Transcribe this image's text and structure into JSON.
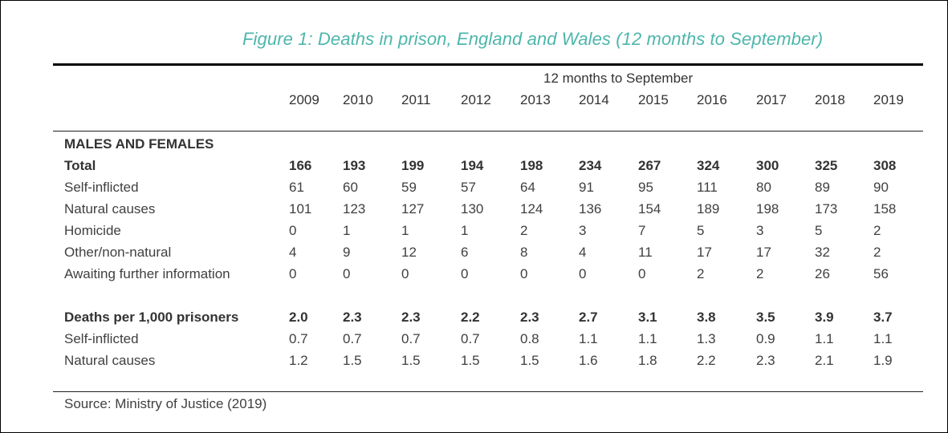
{
  "figure": {
    "title": "Figure 1: Deaths in prison, England and Wales (12 months to September)",
    "title_color": "#4db6ac",
    "column_group_label": "12 months to September",
    "years": [
      "2009",
      "2010",
      "2011",
      "2012",
      "2013",
      "2014",
      "2015",
      "2016",
      "2017",
      "2018",
      "2019"
    ],
    "section_label": "MALES AND FEMALES",
    "rows": [
      {
        "label": "Total",
        "bold": true,
        "values": [
          "166",
          "193",
          "199",
          "194",
          "198",
          "234",
          "267",
          "324",
          "300",
          "325",
          "308"
        ]
      },
      {
        "label": "Self-inflicted",
        "bold": false,
        "values": [
          "61",
          "60",
          "59",
          "57",
          "64",
          "91",
          "95",
          "111",
          "80",
          "89",
          "90"
        ]
      },
      {
        "label": "Natural causes",
        "bold": false,
        "values": [
          "101",
          "123",
          "127",
          "130",
          "124",
          "136",
          "154",
          "189",
          "198",
          "173",
          "158"
        ]
      },
      {
        "label": "Homicide",
        "bold": false,
        "values": [
          "0",
          "1",
          "1",
          "1",
          "2",
          "3",
          "7",
          "5",
          "3",
          "5",
          "2"
        ]
      },
      {
        "label": "Other/non-natural",
        "bold": false,
        "values": [
          "4",
          "9",
          "12",
          "6",
          "8",
          "4",
          "11",
          "17",
          "17",
          "32",
          "2"
        ]
      },
      {
        "label": "Awaiting further information",
        "bold": false,
        "values": [
          "0",
          "0",
          "0",
          "0",
          "0",
          "0",
          "0",
          "2",
          "2",
          "26",
          "56"
        ]
      },
      {
        "label": "Deaths per 1,000 prisoners",
        "bold": true,
        "values": [
          "2.0",
          "2.3",
          "2.3",
          "2.2",
          "2.3",
          "2.7",
          "3.1",
          "3.8",
          "3.5",
          "3.9",
          "3.7"
        ]
      },
      {
        "label": "Self-inflicted",
        "bold": false,
        "values": [
          "0.7",
          "0.7",
          "0.7",
          "0.7",
          "0.8",
          "1.1",
          "1.1",
          "1.3",
          "0.9",
          "1.1",
          "1.1"
        ]
      },
      {
        "label": "Natural causes",
        "bold": false,
        "values": [
          "1.2",
          "1.5",
          "1.5",
          "1.5",
          "1.5",
          "1.6",
          "1.8",
          "2.2",
          "2.3",
          "2.1",
          "1.9"
        ]
      }
    ],
    "source": "Source: Ministry of Justice (2019)"
  }
}
